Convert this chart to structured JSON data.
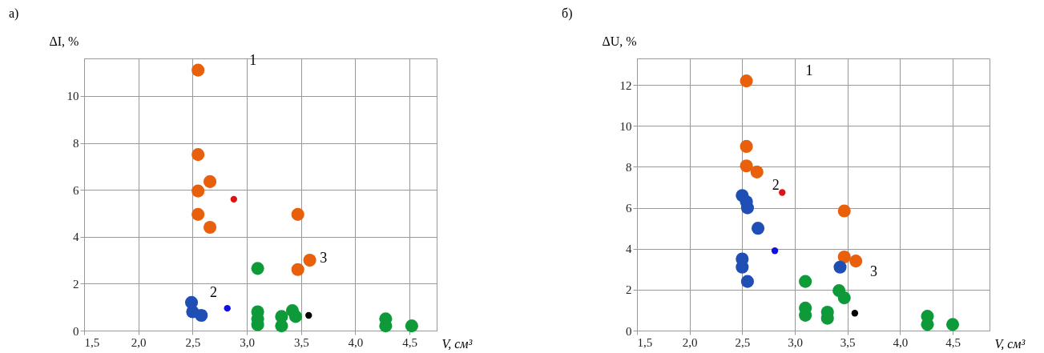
{
  "chart_data": [
    {
      "type": "scatter",
      "title": "а)",
      "xlabel": "V, см³",
      "ylabel": "ΔI, %",
      "xlim": [
        1.5,
        4.75
      ],
      "ylim": [
        0,
        11.6
      ],
      "xticks": [
        {
          "value": 1.5,
          "label": "1,5"
        },
        {
          "value": 2,
          "label": "2,0"
        },
        {
          "value": 2.5,
          "label": "2,5"
        },
        {
          "value": 3,
          "label": "3,0"
        },
        {
          "value": 3.5,
          "label": "3,5"
        },
        {
          "value": 4,
          "label": "4,0"
        },
        {
          "value": 4.5,
          "label": "4,5"
        }
      ],
      "yticks": [
        0,
        2,
        4,
        6,
        8,
        10
      ],
      "grid": true,
      "marker": "circle",
      "series": [
        {
          "color": "#e8600c",
          "x": [
            2.55,
            2.55,
            2.66,
            2.55,
            2.55,
            2.66,
            3.47,
            3.58,
            3.47
          ],
          "values": [
            11.1,
            7.5,
            6.35,
            5.95,
            4.95,
            4.4,
            4.95,
            3.0,
            2.6
          ]
        },
        {
          "color": "#1f4fb5",
          "x": [
            2.49,
            2.5,
            2.55,
            2.58
          ],
          "values": [
            1.2,
            0.8,
            null,
            0.65
          ]
        },
        {
          "color": "#0f9a3a",
          "x": [
            3.1,
            3.1,
            3.1,
            3.1,
            3.32,
            3.32,
            3.42,
            3.45,
            4.28,
            4.28,
            4.52
          ],
          "values": [
            2.65,
            0.8,
            0.5,
            0.25,
            0.6,
            0.2,
            0.85,
            0.6,
            0.5,
            0.2,
            0.2
          ]
        },
        {
          "color": "#e31010",
          "x": [
            2.88
          ],
          "values": [
            5.6
          ]
        },
        {
          "color": "#1010e0",
          "x": [
            2.82
          ],
          "values": [
            0.95
          ]
        },
        {
          "color": "#000000",
          "x": [
            3.57
          ],
          "values": [
            0.65
          ]
        }
      ],
      "annotations": [
        "1",
        "2",
        "3"
      ]
    },
    {
      "type": "scatter",
      "title": "б)",
      "xlabel": "V, см³",
      "ylabel": "ΔU, %",
      "xlim": [
        1.5,
        4.85
      ],
      "ylim": [
        0,
        13.3
      ],
      "xticks": [
        {
          "value": 1.5,
          "label": "1,5"
        },
        {
          "value": 2,
          "label": "2,0"
        },
        {
          "value": 2.5,
          "label": "2,5"
        },
        {
          "value": 3,
          "label": "3,0"
        },
        {
          "value": 3.5,
          "label": "3,5"
        },
        {
          "value": 4,
          "label": "4,0"
        },
        {
          "value": 4.5,
          "label": "4,5"
        }
      ],
      "yticks": [
        0,
        2,
        4,
        6,
        8,
        10,
        12
      ],
      "grid": true,
      "marker": "circle",
      "series": [
        {
          "color": "#e8600c",
          "x": [
            2.54,
            2.54,
            2.54,
            2.64,
            3.47,
            3.47,
            3.58
          ],
          "values": [
            12.2,
            9.0,
            8.05,
            7.75,
            5.85,
            3.6,
            3.4
          ]
        },
        {
          "color": "#1f4fb5",
          "x": [
            2.5,
            2.54,
            2.55,
            2.65,
            2.5,
            2.5,
            2.55,
            3.43
          ],
          "values": [
            6.6,
            6.3,
            6.0,
            5.0,
            3.5,
            3.1,
            2.4,
            3.1
          ]
        },
        {
          "color": "#0f9a3a",
          "x": [
            3.1,
            3.1,
            3.1,
            3.31,
            3.31,
            3.42,
            3.47,
            4.26,
            4.26,
            4.5
          ],
          "values": [
            2.4,
            1.1,
            0.75,
            0.9,
            0.6,
            1.95,
            1.6,
            0.7,
            0.3,
            0.3
          ]
        },
        {
          "color": "#e31010",
          "x": [
            2.88
          ],
          "values": [
            6.75
          ]
        },
        {
          "color": "#1010e0",
          "x": [
            2.81
          ],
          "values": [
            3.9
          ]
        },
        {
          "color": "#000000",
          "x": [
            3.57
          ],
          "values": [
            0.85
          ]
        }
      ],
      "annotations": [
        "1",
        "2",
        "3"
      ]
    }
  ]
}
